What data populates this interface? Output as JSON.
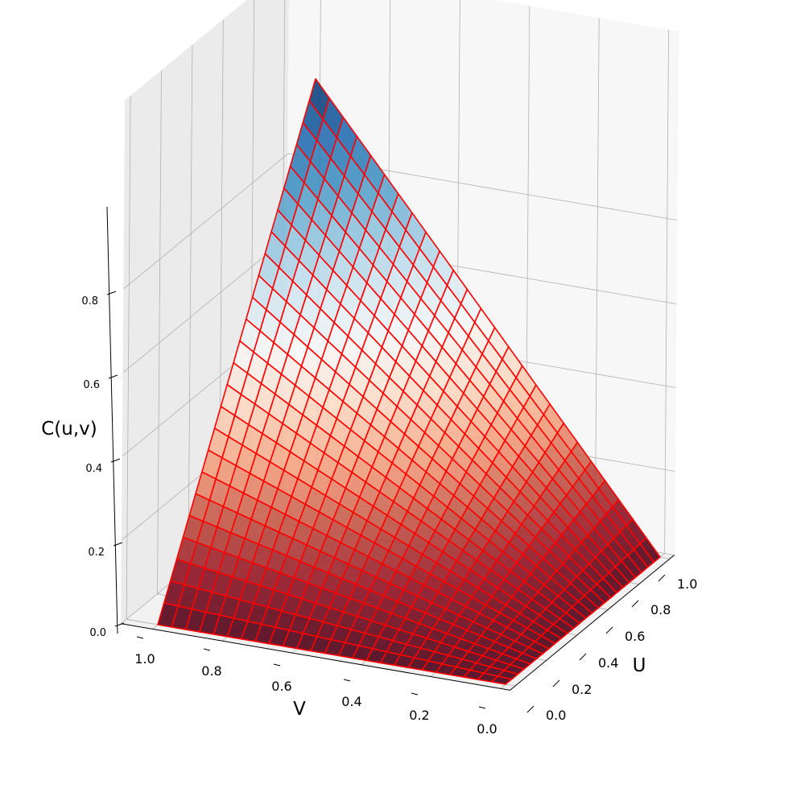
{
  "chart_data": {
    "type": "surface3d",
    "title": "",
    "xlabel": "U",
    "ylabel": "V",
    "zlabel": "C(u,v)",
    "xlim": [
      0,
      1
    ],
    "ylim": [
      0,
      1
    ],
    "zlim": [
      0,
      1
    ],
    "x_ticks": [
      "0.0",
      "0.2",
      "0.4",
      "0.6",
      "0.8",
      "1.0"
    ],
    "y_ticks": [
      "0.0",
      "0.2",
      "0.4",
      "0.6",
      "0.8",
      "1.0"
    ],
    "z_ticks": [
      "0.0",
      "0.2",
      "0.4",
      "0.6",
      "0.8"
    ],
    "grid": true,
    "grid_n": 25,
    "surface_corners": [
      {
        "u": 0,
        "v": 0,
        "z": 0
      },
      {
        "u": 1,
        "v": 0,
        "z": 0
      },
      {
        "u": 0,
        "v": 1,
        "z": 0
      },
      {
        "u": 1,
        "v": 1,
        "z": 1
      }
    ],
    "colormap": "RdBu",
    "wire_color": "#ff0000"
  }
}
